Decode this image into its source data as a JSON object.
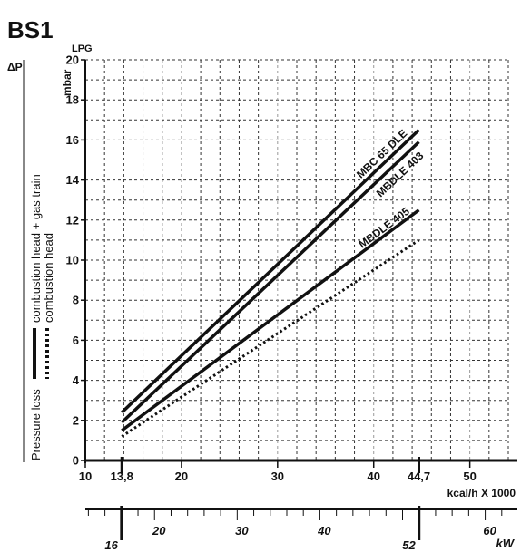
{
  "chart_data": {
    "type": "line",
    "title": "BS1",
    "subtitle": "LPG",
    "x_unit_label": "kcal/h X 1000",
    "x_range": [
      10,
      54
    ],
    "x_ticks": [
      "10",
      "13,8",
      "20",
      "30",
      "40",
      "44,7",
      "50"
    ],
    "y_label_top": "ΔP",
    "y_unit": "mbar",
    "y_range": [
      0,
      20
    ],
    "y_ticks": [
      "0",
      "2",
      "4",
      "6",
      "8",
      "10",
      "12",
      "14",
      "16",
      "18",
      "20"
    ],
    "y_axis_title": "Pressure loss",
    "legend": [
      {
        "line": "solid",
        "label": "combustion head + gas train"
      },
      {
        "line": "dotted",
        "label": "combustion head"
      }
    ],
    "kw_unit": "kW",
    "kw_ticks": [
      "16",
      "20",
      "30",
      "40",
      "52",
      "60"
    ],
    "series": [
      {
        "name": "MBC 65 DLE",
        "line": "solid",
        "x": [
          13.8,
          44.7
        ],
        "y": [
          2.4,
          16.5
        ]
      },
      {
        "name": "MBDLE 403",
        "line": "solid",
        "x": [
          13.8,
          44.7
        ],
        "y": [
          1.9,
          15.9
        ]
      },
      {
        "name": "MBDLE 405",
        "line": "solid",
        "x": [
          13.8,
          44.7
        ],
        "y": [
          1.5,
          12.5
        ]
      },
      {
        "name": "",
        "line": "dotted",
        "x": [
          13.8,
          44.7
        ],
        "y": [
          1.2,
          11.0
        ]
      }
    ],
    "grid": true
  }
}
